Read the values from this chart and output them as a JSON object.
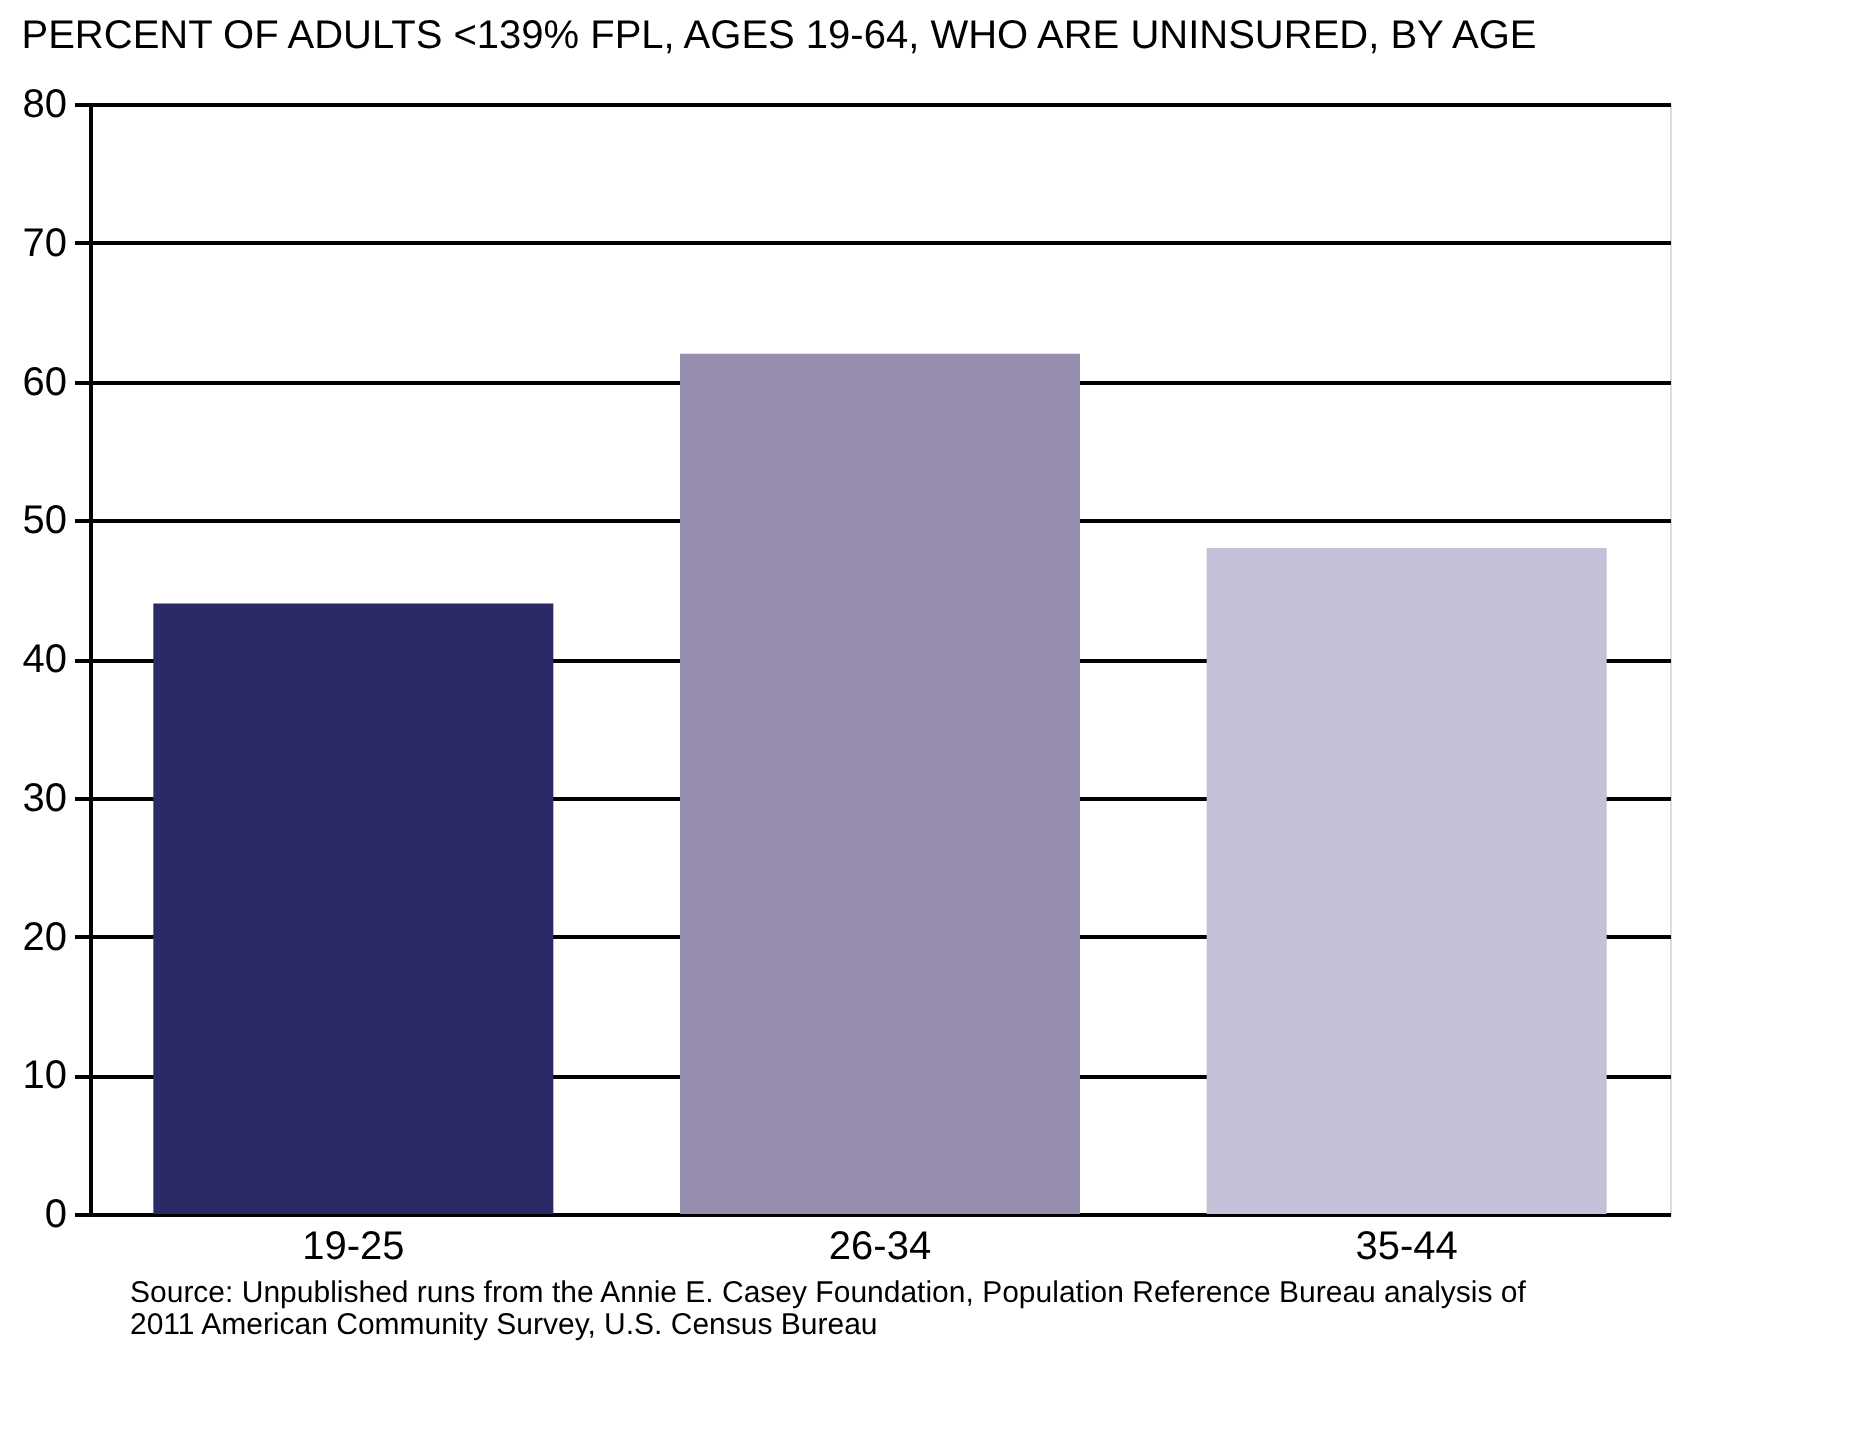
{
  "chart_data": {
    "type": "bar",
    "title": "PERCENT OF ADULTS <139% FPL, AGES 19-64, WHO ARE UNINSURED, BY AGE",
    "categories": [
      "19-25",
      "26-34",
      "35-44"
    ],
    "values": [
      44,
      62,
      48
    ],
    "colors": [
      "#2b2a66",
      "#978daf",
      "#c3c0d8"
    ],
    "ylim": [
      0,
      80
    ],
    "yticks": [
      0,
      10,
      20,
      30,
      40,
      50,
      60,
      70,
      80
    ],
    "grid": "y",
    "annotations": [
      "Source: Unpublished runs from the Annie E. Casey Foundation, Population Reference Bureau analysis of 2011 American Community Survey, U.S. Census Bureau"
    ]
  }
}
